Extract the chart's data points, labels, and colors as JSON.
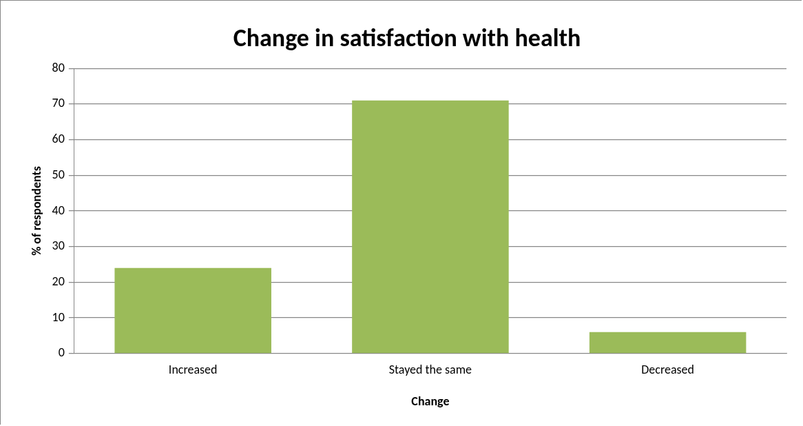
{
  "chart_data": {
    "type": "bar",
    "title": "Change in satisfaction with health",
    "xlabel": "Change",
    "ylabel": "% of respondents",
    "categories": [
      "Increased",
      "Stayed the same",
      "Decreased"
    ],
    "values": [
      24,
      71,
      6
    ],
    "color": "#9bbb59",
    "ylim": [
      0,
      80
    ],
    "yticks": [
      0,
      10,
      20,
      30,
      40,
      50,
      60,
      70,
      80
    ],
    "grid": "y",
    "legend": false
  }
}
